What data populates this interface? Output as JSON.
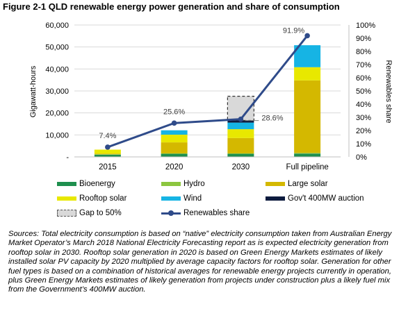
{
  "title": "Figure 2-1 QLD renewable energy power generation and share of consumption",
  "chart_data": {
    "type": "bar",
    "stacked": true,
    "categories": [
      "2015",
      "2020",
      "2030",
      "Full pipeline"
    ],
    "ylabel": "Gigawatt-hours",
    "y2label": "Renewables share",
    "ylim": [
      0,
      60000
    ],
    "y2lim": [
      0,
      100
    ],
    "yticks": [
      "-",
      "10,000",
      "20,000",
      "30,000",
      "40,000",
      "50,000",
      "60,000"
    ],
    "y2ticks": [
      "0%",
      "10%",
      "20%",
      "30%",
      "40%",
      "50%",
      "60%",
      "70%",
      "80%",
      "90%",
      "100%"
    ],
    "series": [
      {
        "name": "Bioenergy",
        "color": "#1e8f4e",
        "values": [
          1000,
          1400,
          1400,
          1500
        ]
      },
      {
        "name": "Hydro",
        "color": "#8cc63f",
        "values": [
          200,
          200,
          200,
          300
        ]
      },
      {
        "name": "Large solar",
        "color": "#d4b800",
        "values": [
          300,
          5000,
          7000,
          33000
        ]
      },
      {
        "name": "Rooftop solar",
        "color": "#e8e800",
        "values": [
          1800,
          3500,
          4000,
          6000
        ]
      },
      {
        "name": "Wind",
        "color": "#16b4e4",
        "values": [
          0,
          2000,
          3000,
          10000
        ]
      },
      {
        "name": "Gov't 400MW auction",
        "color": "#0d1b3e",
        "values": [
          0,
          0,
          1000,
          0
        ]
      },
      {
        "name": "Gap to 50%",
        "color": "#d9d9d9",
        "dashed": true,
        "values": [
          0,
          0,
          11000,
          0
        ]
      }
    ],
    "line": {
      "name": "Renewables share",
      "color": "#2f4b8a",
      "values": [
        7.4,
        25.6,
        28.6,
        91.9
      ],
      "labels": [
        "7.4%",
        "25.6%",
        "28.6%",
        "91.9%"
      ]
    },
    "legend_position": "bottom"
  },
  "legend": [
    {
      "label": "Bioenergy",
      "kind": "solid",
      "color": "#1e8f4e"
    },
    {
      "label": "Hydro",
      "kind": "solid",
      "color": "#8cc63f"
    },
    {
      "label": "Large solar",
      "kind": "solid",
      "color": "#d4b800"
    },
    {
      "label": "Rooftop solar",
      "kind": "solid",
      "color": "#e8e800"
    },
    {
      "label": "Wind",
      "kind": "solid",
      "color": "#16b4e4"
    },
    {
      "label": "Gov't 400MW auction",
      "kind": "solid",
      "color": "#0d1b3e"
    },
    {
      "label": "Gap to 50%",
      "kind": "dashed",
      "color": "#d9d9d9"
    },
    {
      "label": "Renewables share",
      "kind": "line",
      "color": "#2f4b8a"
    }
  ],
  "sources": "Sources: Total electricity consumption is based on “native” electricity consumption taken from Australian Energy Market Operator’s March 2018 National Electricity Forecasting report as is expected electricity generation from rooftop solar in 2030. Rooftop solar generation in 2020 is based on Green Energy Markets estimates of likely installed solar PV capacity by 2020 multiplied by average capacity factors for rooftop solar. Generation for other fuel types is based on a combination of historical averages for renewable energy projects currently in operation, plus Green Energy Markets estimates of likely generation from projects under construction plus a likely fuel mix from the Government’s 400MW auction."
}
